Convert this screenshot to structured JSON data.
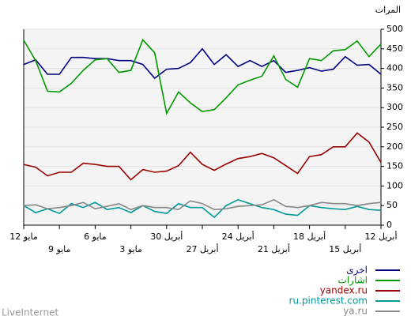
{
  "chart_data": {
    "type": "line",
    "title": "المرات",
    "source": "LiveInternet",
    "categories": [
      "12 مايو",
      null,
      null,
      "9 مايو",
      null,
      null,
      "6 مايو",
      null,
      null,
      "3 مايو",
      null,
      null,
      "30 أبريل",
      null,
      null,
      "27 أبريل",
      null,
      null,
      "24 أبريل",
      null,
      null,
      "21 أبريل",
      null,
      null,
      "18 أبريل",
      null,
      null,
      "15 أبريل",
      null,
      null,
      "12 أبريل"
    ],
    "ylim": [
      0,
      500
    ],
    "yticks": [
      0,
      50,
      100,
      150,
      200,
      250,
      300,
      350,
      400,
      450,
      500
    ],
    "grid": true,
    "series": [
      {
        "name": "اخرى",
        "color": "#000080",
        "values": [
          410,
          422,
          385,
          385,
          428,
          428,
          425,
          425,
          420,
          420,
          410,
          375,
          398,
          400,
          415,
          450,
          410,
          435,
          405,
          420,
          405,
          420,
          390,
          395,
          402,
          393,
          398,
          430,
          408,
          410,
          385
        ]
      },
      {
        "name": "اشارات",
        "color": "#009900",
        "values": [
          472,
          420,
          342,
          340,
          362,
          395,
          422,
          425,
          390,
          395,
          473,
          440,
          285,
          340,
          312,
          290,
          295,
          325,
          358,
          370,
          380,
          432,
          372,
          352,
          425,
          420,
          445,
          448,
          470,
          430,
          462
        ]
      },
      {
        "name": "yandex.ru",
        "color": "#990000",
        "values": [
          155,
          148,
          126,
          135,
          135,
          158,
          155,
          150,
          150,
          116,
          142,
          135,
          138,
          152,
          186,
          155,
          140,
          156,
          170,
          175,
          183,
          172,
          152,
          132,
          175,
          180,
          200,
          200,
          235,
          212,
          160
        ]
      },
      {
        "name": "ru.pinterest.com",
        "color": "#009999",
        "values": [
          50,
          32,
          42,
          30,
          55,
          45,
          58,
          40,
          45,
          32,
          50,
          35,
          30,
          55,
          45,
          45,
          20,
          50,
          65,
          55,
          45,
          40,
          28,
          25,
          50,
          45,
          42,
          40,
          48,
          40,
          38
        ]
      },
      {
        "name": "ya.ru",
        "color": "#888888",
        "values": [
          50,
          52,
          42,
          45,
          50,
          58,
          42,
          48,
          55,
          40,
          50,
          45,
          45,
          40,
          62,
          55,
          40,
          42,
          48,
          50,
          52,
          65,
          48,
          45,
          50,
          58,
          55,
          55,
          50,
          55,
          58
        ]
      }
    ]
  }
}
